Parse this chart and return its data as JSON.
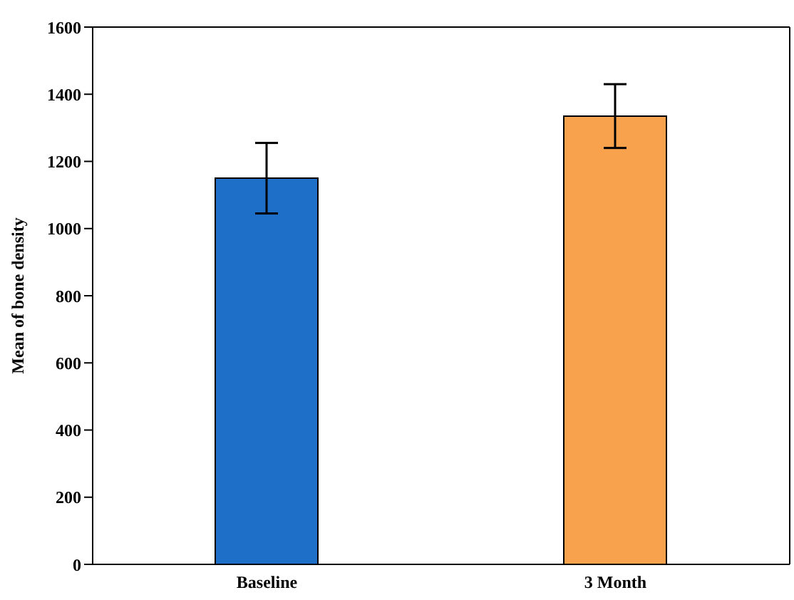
{
  "chart_data": {
    "type": "bar",
    "ylabel": "Mean of bone density",
    "categories": [
      "Baseline",
      "3 Month"
    ],
    "values": [
      1150,
      1335
    ],
    "colors": [
      "#1e6fc8",
      "#f9a24e"
    ],
    "errors": [
      105,
      95
    ],
    "ylim": [
      0,
      1600
    ],
    "yticks": [
      0,
      200,
      400,
      600,
      800,
      1000,
      1200,
      1400,
      1600
    ],
    "grid": false,
    "legend": false
  }
}
